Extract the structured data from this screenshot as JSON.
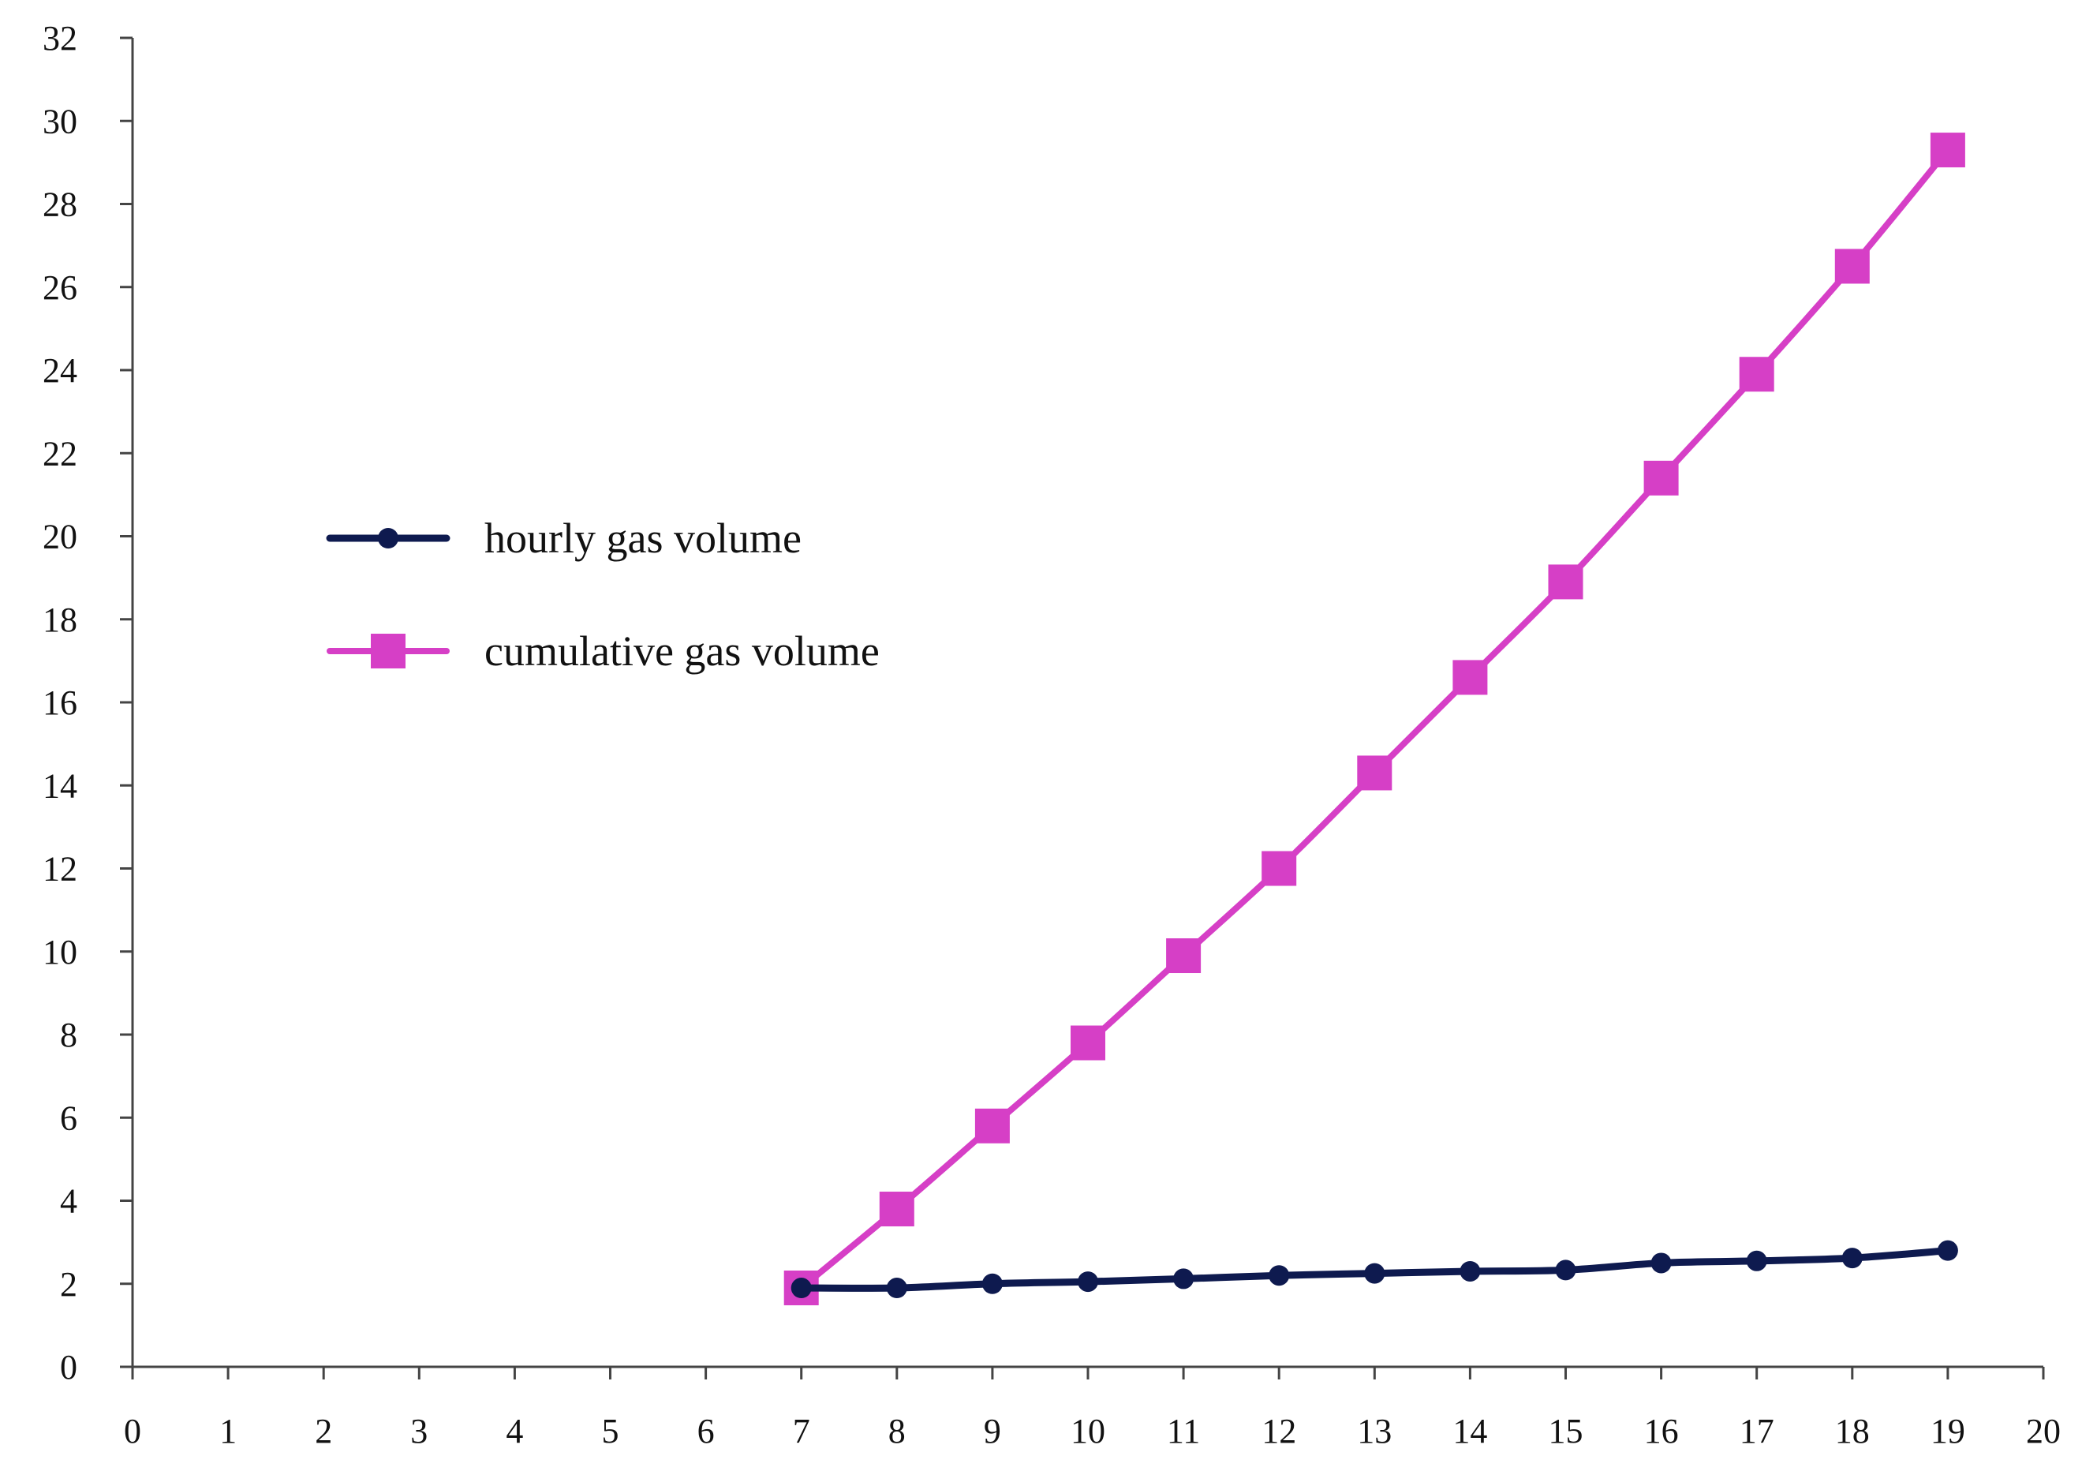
{
  "chart_data": {
    "type": "line",
    "title": "",
    "xlabel": "",
    "ylabel": "",
    "xlim": [
      0,
      20
    ],
    "ylim": [
      0,
      32
    ],
    "x_ticks": [
      "0",
      "1",
      "2",
      "3",
      "4",
      "5",
      "6",
      "7",
      "8",
      "9",
      "10",
      "11",
      "12",
      "13",
      "14",
      "15",
      "16",
      "17",
      "18",
      "19",
      "20"
    ],
    "y_ticks": [
      "0",
      "2",
      "4",
      "6",
      "8",
      "10",
      "12",
      "14",
      "16",
      "18",
      "20",
      "22",
      "24",
      "26",
      "28",
      "30",
      "32"
    ],
    "grid": false,
    "legend_position": "center-left",
    "series": [
      {
        "name": "hourly gas volume",
        "color": "#0e1a4f",
        "marker": "circle",
        "x": [
          7,
          8,
          9,
          10,
          11,
          12,
          13,
          14,
          15,
          16,
          17,
          18,
          19
        ],
        "values": [
          1.9,
          1.9,
          2.0,
          2.05,
          2.12,
          2.2,
          2.25,
          2.3,
          2.33,
          2.5,
          2.55,
          2.62,
          2.8
        ]
      },
      {
        "name": "cumulative gas volume",
        "color": "#d63fc6",
        "marker": "square",
        "x": [
          7,
          8,
          9,
          10,
          11,
          12,
          13,
          14,
          15,
          16,
          17,
          18,
          19
        ],
        "values": [
          1.9,
          3.8,
          5.8,
          7.8,
          9.9,
          12.0,
          14.3,
          16.6,
          18.9,
          21.4,
          23.9,
          26.5,
          29.3
        ]
      }
    ]
  }
}
